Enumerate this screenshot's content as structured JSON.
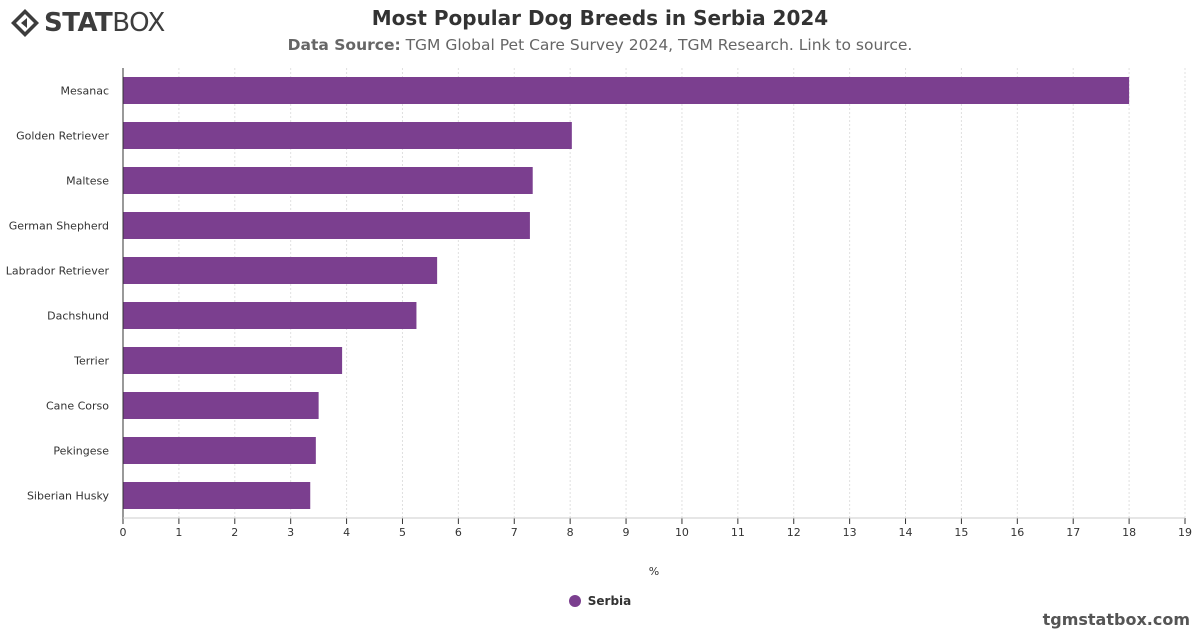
{
  "brand": {
    "logo_text_bold": "STAT",
    "logo_text_light": "BOX",
    "logo_icon": "diamond-arrows-icon",
    "footer_site": "tgmstatbox.com"
  },
  "header": {
    "title": "Most Popular Dog Breeds in Serbia 2024",
    "source_label": "Data Source:",
    "source_text": " TGM Global Pet Care Survey 2024, TGM Research. Link to source."
  },
  "colors": {
    "bar": "#7b3f8f",
    "grid": "#e0e0e0",
    "axis": "#333333"
  },
  "chart_data": {
    "type": "bar",
    "orientation": "horizontal",
    "categories": [
      "Mesanac",
      "Golden Retriever",
      "Maltese",
      "German Shepherd",
      "Labrador Retriever",
      "Dachshund",
      "Terrier",
      "Cane Corso",
      "Pekingese",
      "Siberian Husky"
    ],
    "series": [
      {
        "name": "Serbia",
        "values": [
          18.0,
          8.03,
          7.33,
          7.28,
          5.62,
          5.25,
          3.92,
          3.5,
          3.45,
          3.35
        ]
      }
    ],
    "xlabel": "%",
    "xlim": [
      0,
      19
    ],
    "xticks": [
      "0",
      "1",
      "2",
      "3",
      "4",
      "5",
      "6",
      "7",
      "8",
      "9",
      "10",
      "11",
      "12",
      "13",
      "14",
      "15",
      "16",
      "17",
      "18",
      "19"
    ],
    "grid": true,
    "legend_position": "bottom-center"
  }
}
